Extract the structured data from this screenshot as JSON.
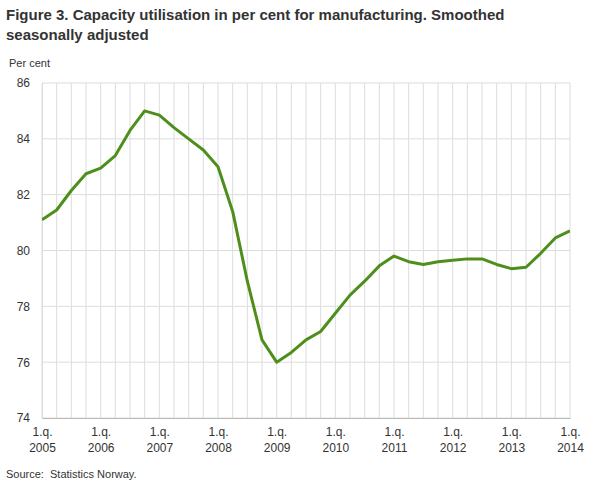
{
  "chart_data": {
    "type": "line",
    "title": "Figure 3. Capacity utilisation in per cent for manufacturing. Smoothed\nseasonally adjusted",
    "y_label": "Per cent",
    "source": "Source:  Statistics Norway.",
    "categories": [
      "1.q.\n2005",
      null,
      null,
      null,
      "1.q.\n2006",
      null,
      null,
      null,
      "1.q.\n2007",
      null,
      null,
      null,
      "1.q.\n2008",
      null,
      null,
      null,
      "1.q.\n2009",
      null,
      null,
      null,
      "1.q.\n2010",
      null,
      null,
      null,
      "1.q.\n2011",
      null,
      null,
      null,
      "1.q.\n2012",
      null,
      null,
      null,
      "1.q.\n2013",
      null,
      null,
      null,
      "1.q.\n2014"
    ],
    "values": [
      81.1,
      81.45,
      82.15,
      82.75,
      82.95,
      83.4,
      84.3,
      85.0,
      84.85,
      84.4,
      84.0,
      83.6,
      83.0,
      81.4,
      78.9,
      76.8,
      76.0,
      76.35,
      76.8,
      77.1,
      77.75,
      78.4,
      78.9,
      79.45,
      79.8,
      79.6,
      79.5,
      79.6,
      79.65,
      79.7,
      79.7,
      79.5,
      79.35,
      79.4,
      79.9,
      80.45,
      80.7
    ],
    "color": "#4e8f1c",
    "ylim": [
      74,
      86
    ],
    "yticks": [
      74,
      76,
      78,
      80,
      82,
      84,
      86
    ],
    "grid": true
  }
}
